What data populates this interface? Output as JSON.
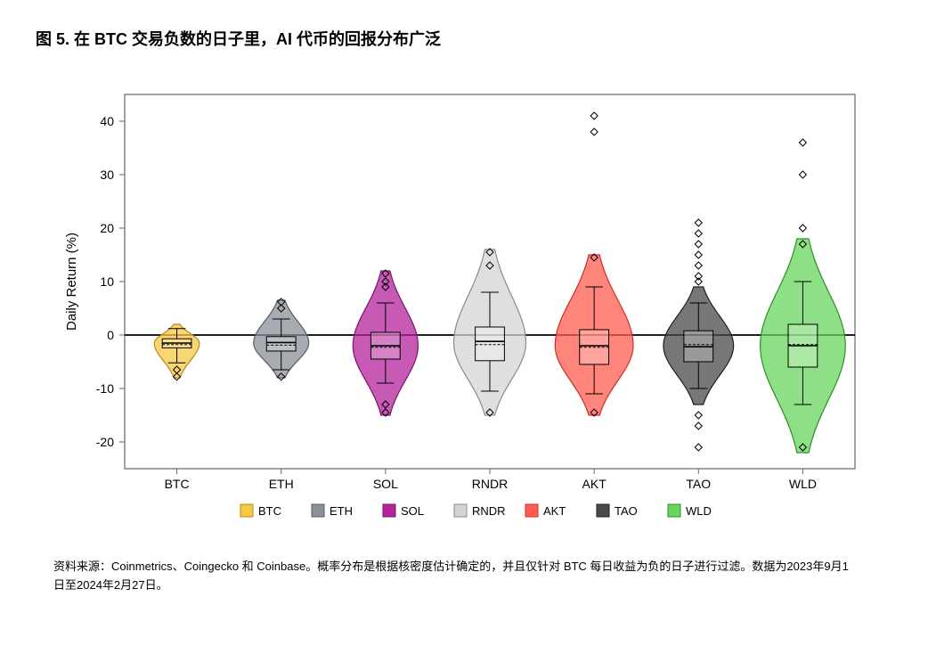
{
  "title": "图 5. 在 BTC 交易负数的日子里，AI 代币的回报分布广泛",
  "footnote": "资料来源：Coinmetrics、Coingecko 和 Coinbase。概率分布是根据核密度估计确定的，并且仅针对 BTC 每日收益为负的日子进行过滤。数据为2023年9月1日至2024年2月27日。",
  "chart": {
    "type": "violin_boxplot",
    "ylabel": "Daily Return (%)",
    "ylabel_fontsize": 15,
    "ytick_fontsize": 14,
    "xtick_fontsize": 14,
    "legend_fontsize": 13,
    "ylim": [
      -25,
      45
    ],
    "yticks": [
      -20,
      -10,
      0,
      10,
      20,
      30,
      40
    ],
    "background_color": "#ffffff",
    "plot_bg": "#ffffff",
    "border_color": "#666666",
    "zero_line_color": "#000000",
    "zero_line_width": 1.8,
    "categories": [
      "BTC",
      "ETH",
      "SOL",
      "RNDR",
      "AKT",
      "TAO",
      "WLD"
    ],
    "series": [
      {
        "name": "BTC",
        "fill": "#f7c843",
        "stroke": "#b38b1f",
        "violin_width": 0.45,
        "peak_y": -1.5,
        "tail_top": 2,
        "tail_bottom": -8,
        "box": {
          "q1": -2.4,
          "median": -1.5,
          "mean": -1.8,
          "q3": -0.7,
          "whisker_low": -5.2,
          "whisker_high": 1.2
        },
        "outliers": [
          -7.8,
          -6.5
        ]
      },
      {
        "name": "ETH",
        "fill": "#8a909a",
        "stroke": "#575b63",
        "violin_width": 0.55,
        "peak_y": -1.5,
        "tail_top": 6.5,
        "tail_bottom": -8,
        "box": {
          "q1": -3.0,
          "median": -1.4,
          "mean": -1.9,
          "q3": -0.3,
          "whisker_low": -6.5,
          "whisker_high": 3.0
        },
        "outliers": [
          6.2,
          5.0,
          -7.8
        ]
      },
      {
        "name": "SOL",
        "fill": "#b3239c",
        "stroke": "#7a1369",
        "violin_width": 0.65,
        "peak_y": -2,
        "tail_top": 12,
        "tail_bottom": -15,
        "box": {
          "q1": -4.5,
          "median": -2.0,
          "mean": -2.3,
          "q3": 0.5,
          "whisker_low": -9.0,
          "whisker_high": 6.0
        },
        "outliers": [
          11.5,
          10.0,
          9.0,
          -13.0,
          -14.5
        ]
      },
      {
        "name": "RNDR",
        "fill": "#d4d4d4",
        "stroke": "#8a8a8a",
        "violin_width": 0.72,
        "peak_y": -1.5,
        "tail_top": 16,
        "tail_bottom": -15,
        "box": {
          "q1": -4.8,
          "median": -1.2,
          "mean": -1.8,
          "q3": 1.5,
          "whisker_low": -10.5,
          "whisker_high": 8.0
        },
        "outliers": [
          15.5,
          13.0,
          -14.5
        ]
      },
      {
        "name": "AKT",
        "fill": "#ff5c52",
        "stroke": "#cc2f27",
        "violin_width": 0.78,
        "peak_y": -2,
        "tail_top": 15,
        "tail_bottom": -15,
        "box": {
          "q1": -5.5,
          "median": -2.0,
          "mean": -2.3,
          "q3": 1.0,
          "whisker_low": -11.0,
          "whisker_high": 9.0
        },
        "outliers": [
          41,
          38,
          14.5,
          -14.5
        ]
      },
      {
        "name": "TAO",
        "fill": "#4a4a4a",
        "stroke": "#1f1f1f",
        "violin_width": 0.7,
        "peak_y": -2,
        "tail_top": 9,
        "tail_bottom": -13,
        "box": {
          "q1": -5.0,
          "median": -2.2,
          "mean": -1.8,
          "q3": 0.8,
          "whisker_low": -10.0,
          "whisker_high": 6.0
        },
        "outliers": [
          21,
          19,
          17,
          15,
          13,
          11,
          10,
          -15,
          -17,
          -21
        ]
      },
      {
        "name": "WLD",
        "fill": "#68d65d",
        "stroke": "#2f8d25",
        "violin_width": 0.85,
        "peak_y": -2,
        "tail_top": 18,
        "tail_bottom": -22,
        "box": {
          "q1": -6.0,
          "median": -2.0,
          "mean": -1.8,
          "q3": 2.0,
          "whisker_low": -13.0,
          "whisker_high": 10.0
        },
        "outliers": [
          36,
          30,
          20,
          17,
          -21
        ]
      }
    ]
  }
}
